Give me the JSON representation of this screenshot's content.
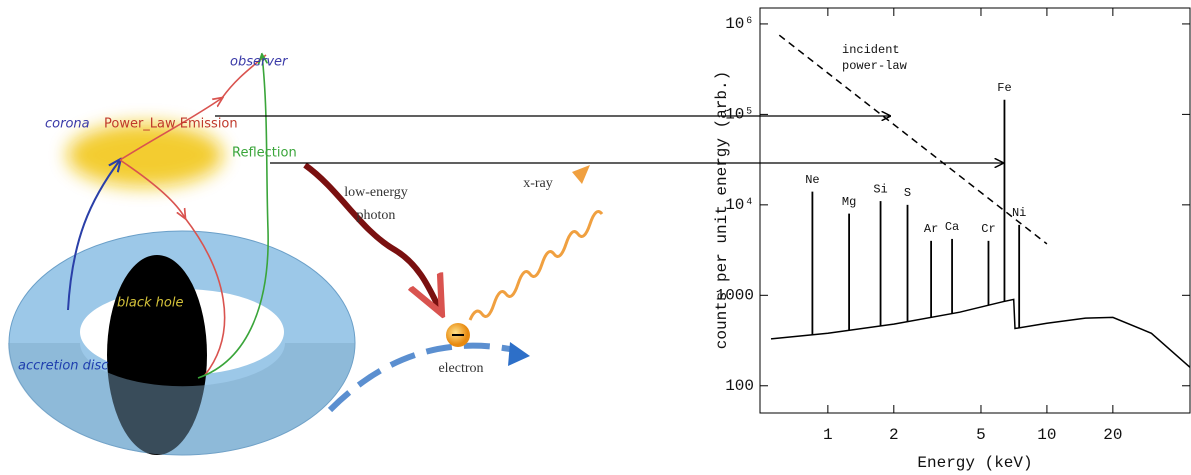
{
  "diagram": {
    "observer": "observer",
    "corona": "corona",
    "emission": "Power_Law Emission",
    "reflection": "Reflection",
    "black_hole": "black hole",
    "accretion_disc": "accretion disc",
    "low_energy_photon": [
      "low-energy",
      "photon"
    ],
    "xray": "x-ray",
    "electron": "electron"
  },
  "chart_data": {
    "type": "line",
    "xlabel": "Energy (keV)",
    "ylabel": "counts per unit energy (arb.)",
    "annotation": [
      "incident",
      "power-law"
    ],
    "xlog": true,
    "ylog": true,
    "xlim": [
      0.49,
      45
    ],
    "ylim": [
      50,
      1500000
    ],
    "xticks": [
      1,
      2,
      5,
      10,
      20
    ],
    "yticks": [
      100,
      1000,
      {
        "value": 10000,
        "label": "10⁴"
      },
      {
        "value": 100000,
        "label": "10⁵"
      },
      {
        "value": 1000000,
        "label": "10⁶"
      }
    ],
    "continuum": {
      "x": [
        0.55,
        1,
        2,
        4,
        6.3,
        7.05,
        7.15,
        10,
        15,
        20,
        30,
        45
      ],
      "values": [
        330,
        380,
        480,
        650,
        850,
        900,
        430,
        490,
        560,
        570,
        380,
        160
      ],
      "color": "#000000"
    },
    "power_law": {
      "x": [
        0.6,
        10
      ],
      "values": [
        750000,
        3700
      ],
      "color": "#000000",
      "dashed": true
    },
    "emission_lines": [
      {
        "label": "Ne",
        "x": 0.85,
        "value": 14000
      },
      {
        "label": "Mg",
        "x": 1.25,
        "value": 8000
      },
      {
        "label": "Si",
        "x": 1.74,
        "value": 11000
      },
      {
        "label": "S",
        "x": 2.31,
        "value": 10000
      },
      {
        "label": "Ar",
        "x": 2.96,
        "value": 4000
      },
      {
        "label": "Ca",
        "x": 3.69,
        "value": 4200
      },
      {
        "label": "Cr",
        "x": 5.41,
        "value": 4000
      },
      {
        "label": "Fe",
        "x": 6.4,
        "value": 145000
      },
      {
        "label": "Ni",
        "x": 7.47,
        "value": 6000
      }
    ]
  }
}
